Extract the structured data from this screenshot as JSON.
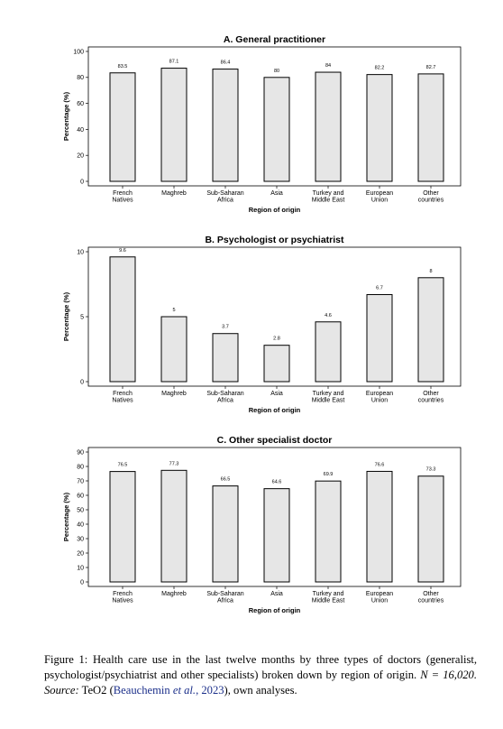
{
  "figure": {
    "caption_label": "Figure 1:",
    "caption_main": "Health care use in the last twelve months by three types of doctors (generalist, psychologist/psychiatrist and other specialists) broken down by region of origin.",
    "caption_n": "N = 16,020.",
    "caption_source_label": "Source:",
    "caption_source_pre": "TeO2 (",
    "caption_ref_author": "Beauchemin",
    "caption_ref_etal": "et al.",
    "caption_ref_sep": ", ",
    "caption_ref_year": "2023",
    "caption_source_post": "), own analyses."
  },
  "chart_data": [
    {
      "type": "bar",
      "title": "A. General practitioner",
      "xlabel": "Region of origin",
      "ylabel": "Percentage (%)",
      "categories": [
        [
          "French",
          "Natives"
        ],
        [
          "Maghreb"
        ],
        [
          "Sub-Saharan",
          "Africa"
        ],
        [
          "Asia"
        ],
        [
          "Turkey and",
          "Middle East"
        ],
        [
          "European",
          "Union"
        ],
        [
          "Other",
          "countries"
        ]
      ],
      "values": [
        83.5,
        87.1,
        86.4,
        80,
        84,
        82.2,
        82.7
      ],
      "value_labels": [
        "83.5",
        "87.1",
        "86.4",
        "80",
        "84",
        "82.2",
        "82.7"
      ],
      "yticks": [
        0,
        20,
        40,
        60,
        80,
        100
      ],
      "ylim": [
        0,
        100
      ],
      "bar_color": "#e6e6e6"
    },
    {
      "type": "bar",
      "title": "B. Psychologist or psychiatrist",
      "xlabel": "Region of origin",
      "ylabel": "Percentage (%)",
      "categories": [
        [
          "French",
          "Natives"
        ],
        [
          "Maghreb"
        ],
        [
          "Sub-Saharan",
          "Africa"
        ],
        [
          "Asia"
        ],
        [
          "Turkey and",
          "Middle East"
        ],
        [
          "European",
          "Union"
        ],
        [
          "Other",
          "countries"
        ]
      ],
      "values": [
        9.6,
        5,
        3.7,
        2.8,
        4.6,
        6.7,
        8
      ],
      "value_labels": [
        "9.6",
        "5",
        "3.7",
        "2.8",
        "4.6",
        "6.7",
        "8"
      ],
      "yticks": [
        0,
        5,
        10
      ],
      "ylim": [
        0,
        10
      ],
      "bar_color": "#e6e6e6"
    },
    {
      "type": "bar",
      "title": "C. Other specialist doctor",
      "xlabel": "Region of origin",
      "ylabel": "Percentage (%)",
      "categories": [
        [
          "French",
          "Natives"
        ],
        [
          "Maghreb"
        ],
        [
          "Sub-Saharan",
          "Africa"
        ],
        [
          "Asia"
        ],
        [
          "Turkey and",
          "Middle East"
        ],
        [
          "European",
          "Union"
        ],
        [
          "Other",
          "countries"
        ]
      ],
      "values": [
        76.5,
        77.3,
        66.5,
        64.6,
        69.9,
        76.6,
        73.3
      ],
      "value_labels": [
        "76.5",
        "77.3",
        "66.5",
        "64.6",
        "69.9",
        "76.6",
        "73.3"
      ],
      "yticks": [
        0,
        10,
        20,
        30,
        40,
        50,
        60,
        70,
        80,
        90
      ],
      "ylim": [
        0,
        90
      ],
      "bar_color": "#e6e6e6"
    }
  ]
}
